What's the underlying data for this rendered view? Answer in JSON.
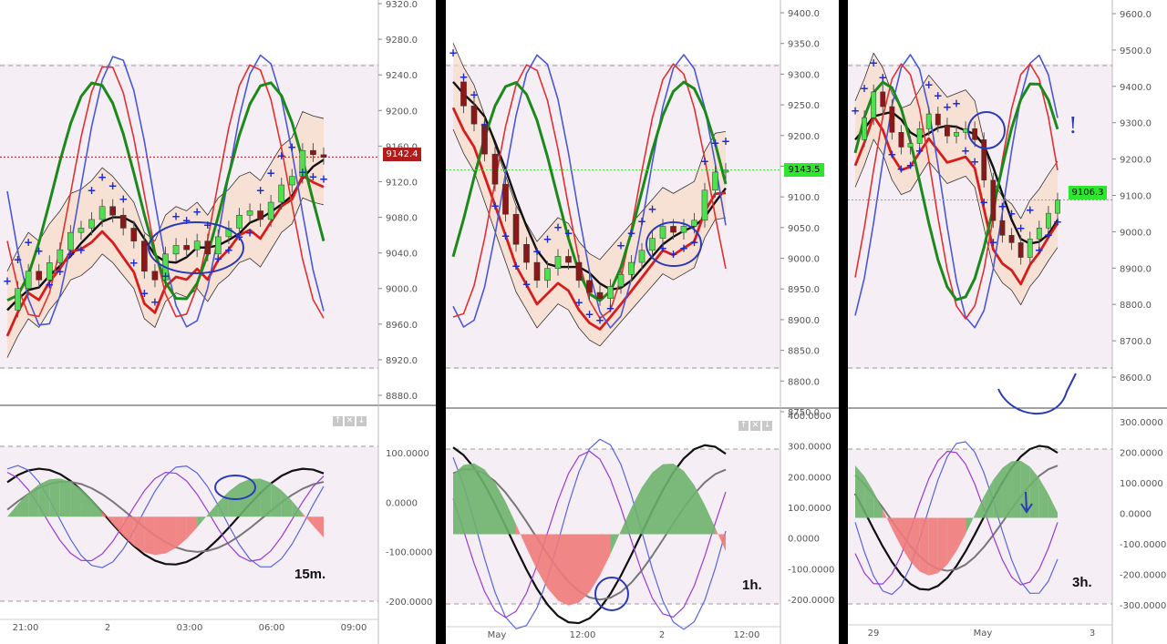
{
  "panels": [
    {
      "id": "p15",
      "timeframe_label": "15m.",
      "price_label": "9142.4",
      "price_label_color": "#b01c1c",
      "price_ticks": [
        "9320.0",
        "9280.0",
        "9240.0",
        "9200.0",
        "9160.0",
        "9120.0",
        "9080.0",
        "9040.0",
        "9000.0",
        "8960.0",
        "8920.0",
        "8880.0"
      ],
      "osc_ticks": [
        "100.0000",
        "0.0000",
        "-100.0000",
        "-200.0000"
      ],
      "time_ticks": [
        "21:00",
        "2",
        "03:00",
        "06:00",
        "09:00"
      ],
      "window_buttons": [
        "↑",
        "✕",
        "↓"
      ]
    },
    {
      "id": "p1h",
      "timeframe_label": "1h.",
      "price_label": "9143.5",
      "price_label_color": "#2ee62e",
      "price_ticks": [
        "9400.0",
        "9350.0",
        "9300.0",
        "9250.0",
        "9200.0",
        "9150.0",
        "9100.0",
        "9050.0",
        "9000.0",
        "8950.0",
        "8900.0",
        "8850.0",
        "8800.0",
        "8750.0"
      ],
      "osc_ticks": [
        "400.0000",
        "300.0000",
        "200.0000",
        "100.0000",
        "0.0000",
        "-100.0000",
        "-200.0000"
      ],
      "time_ticks": [
        "May",
        "12:00",
        "2",
        "12:00"
      ],
      "window_buttons": [
        "↑",
        "✕",
        "↓"
      ]
    },
    {
      "id": "p3h",
      "timeframe_label": "3h.",
      "price_label": "9106.3",
      "price_label_color": "#2ee62e",
      "price_ticks": [
        "9600.0",
        "9500.0",
        "9400.0",
        "9300.0",
        "9200.0",
        "9100.0",
        "9000.0",
        "8900.0",
        "8800.0",
        "8700.0",
        "8600.0"
      ],
      "osc_ticks": [
        "300.0000",
        "200.0000",
        "100.0000",
        "0.0000",
        "-100.0000",
        "-200.0000",
        "-300.0000"
      ],
      "time_ticks": [
        "29",
        "May",
        "3"
      ],
      "annotation_exclaim": "!"
    }
  ],
  "chart_data": [
    {
      "type": "candlestick",
      "title": "",
      "timeframe": "15m",
      "ylim": [
        8860,
        9320
      ],
      "last_price": 9142.4,
      "x_ticks": [
        "21:00",
        "2",
        "03:00",
        "06:00",
        "09:00"
      ],
      "close_series": [
        8965,
        8990,
        9010,
        9000,
        9020,
        9035,
        9055,
        9060,
        9070,
        9085,
        9075,
        9060,
        9045,
        9010,
        9000,
        9030,
        9040,
        9035,
        9045,
        9030,
        9050,
        9060,
        9075,
        9080,
        9070,
        9090,
        9110,
        9120,
        9150,
        9145,
        9142
      ],
      "oscillator": {
        "ylim": [
          -230,
          160
        ],
        "zero": 0,
        "histogram_sign": [
          "pos",
          "pos",
          "neg",
          "pos",
          "neg",
          "pos",
          "neg",
          "pos"
        ]
      }
    },
    {
      "type": "candlestick",
      "title": "",
      "timeframe": "1h",
      "ylim": [
        8760,
        9420
      ],
      "last_price": 9143.5,
      "x_ticks": [
        "May",
        "12:00",
        "2",
        "12:00"
      ],
      "close_series": [
        9290,
        9250,
        9220,
        9170,
        9120,
        9070,
        9020,
        8990,
        8960,
        8980,
        9000,
        8990,
        8960,
        8940,
        8930,
        8950,
        8970,
        8990,
        9010,
        9030,
        9050,
        9040,
        9050,
        9060,
        9110,
        9140,
        9143
      ],
      "oscillator": {
        "ylim": [
          -250,
          400
        ],
        "zero": 0
      }
    },
    {
      "type": "candlestick",
      "title": "",
      "timeframe": "3h",
      "ylim": [
        8560,
        9640
      ],
      "last_price": 9106.3,
      "x_ticks": [
        "29",
        "May",
        "3"
      ],
      "close_series": [
        9270,
        9330,
        9400,
        9360,
        9290,
        9250,
        9260,
        9300,
        9340,
        9310,
        9280,
        9290,
        9300,
        9270,
        9160,
        9050,
        9010,
        8990,
        8950,
        9000,
        9030,
        9070,
        9106
      ],
      "oscillator": {
        "ylim": [
          -320,
          320
        ],
        "zero": 0
      }
    }
  ]
}
